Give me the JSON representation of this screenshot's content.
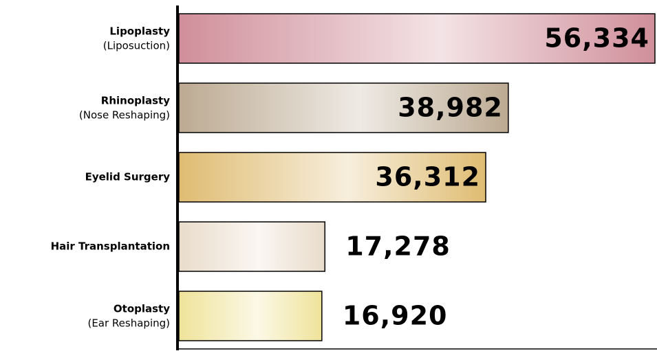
{
  "chart_data": {
    "type": "bar",
    "orientation": "horizontal",
    "categories": [
      "Lipoplasty",
      "Rhinoplasty",
      "Eyelid Surgery",
      "Hair Transplantation",
      "Otoplasty"
    ],
    "category_notes": [
      "(Liposuction)",
      "(Nose Reshaping)",
      null,
      null,
      "(Ear Reshaping)"
    ],
    "values": [
      56334,
      38982,
      36312,
      17278,
      16920
    ],
    "value_labels": [
      "56,334",
      "38,982",
      "36,312",
      "17,278",
      "16,920"
    ],
    "colors": [
      "#d08f9a",
      "#bcaa92",
      "#dfbc72",
      "#e9dccb",
      "#efe39a"
    ],
    "xlim": [
      0,
      56334
    ]
  }
}
